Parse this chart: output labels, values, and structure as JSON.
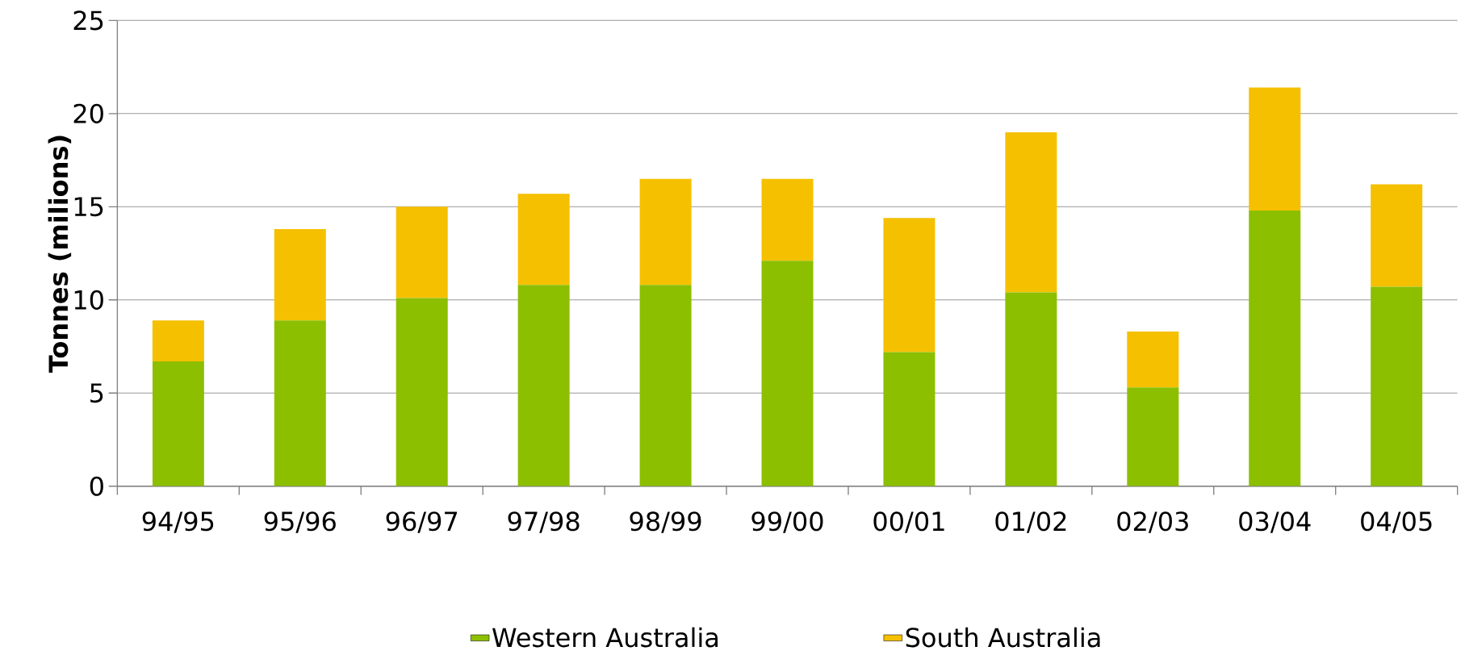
{
  "chart_data": {
    "type": "bar",
    "stacked": true,
    "ylabel": "Tonnes (milions)",
    "categories": [
      "94/95",
      "95/96",
      "96/97",
      "97/98",
      "98/99",
      "99/00",
      "00/01",
      "01/02",
      "02/03",
      "03/04",
      "04/05"
    ],
    "series": [
      {
        "name": "Western Australia",
        "color": "#8cbf00",
        "values": [
          6.7,
          8.9,
          10.1,
          10.8,
          10.8,
          12.1,
          7.2,
          10.4,
          5.3,
          14.8,
          10.7
        ]
      },
      {
        "name": "South Australia",
        "color": "#f5c000",
        "values": [
          2.2,
          4.9,
          4.9,
          4.9,
          5.7,
          4.4,
          7.2,
          8.6,
          3.0,
          6.6,
          5.5
        ]
      }
    ],
    "ylim": [
      0,
      25
    ],
    "yticks": [
      0,
      5,
      10,
      15,
      20,
      25
    ],
    "grid": "y",
    "legend": "bottom"
  }
}
